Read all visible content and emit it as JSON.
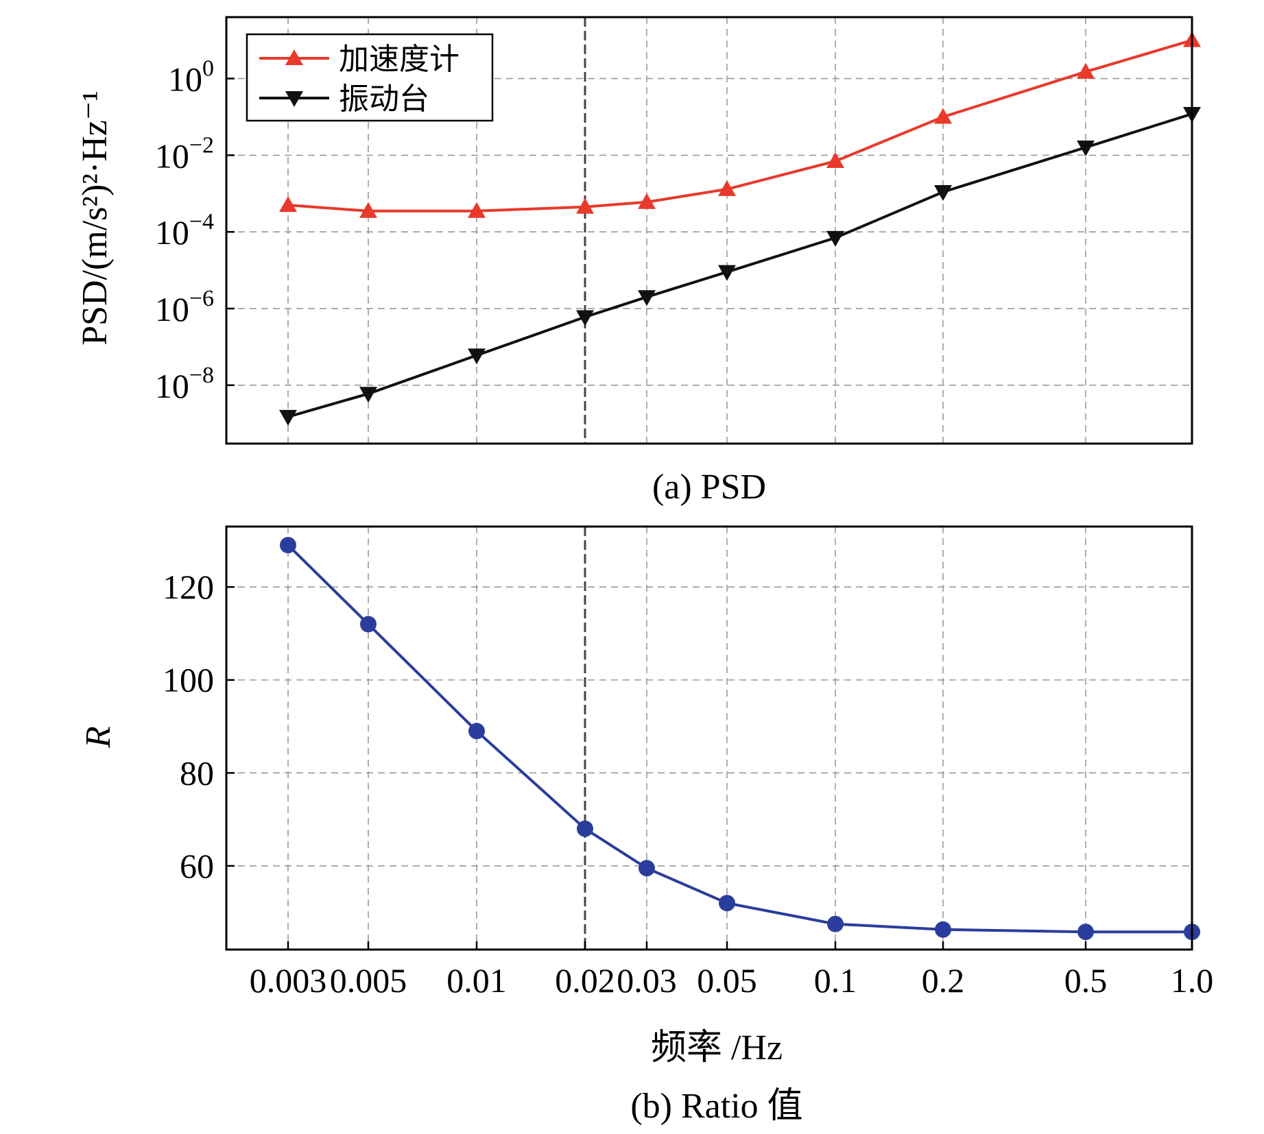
{
  "x_ticks": [
    "0.003",
    "0.005",
    "0.01",
    "0.02",
    "0.03",
    "0.05",
    "0.1",
    "0.2",
    "0.5",
    "1.0"
  ],
  "xlabel": "频率 /Hz",
  "colors": {
    "accelerometer": "#e8392b",
    "shaker": "#111111",
    "ratio": "#2a3d9c",
    "grid": "#9a9a9a",
    "marker_line": "#444444"
  },
  "chart_data": [
    {
      "type": "line",
      "title": "",
      "caption": "(a) PSD",
      "ylabel": "PSD/(m/s²)²·Hz⁻¹",
      "yscale": "log",
      "ylim": [
        3e-10,
        40
      ],
      "y_ticks": [
        {
          "exp": 0,
          "label_base": "10",
          "label_exp": "0"
        },
        {
          "exp": -2,
          "label_base": "10",
          "label_exp": "−2"
        },
        {
          "exp": -4,
          "label_base": "10",
          "label_exp": "−4"
        },
        {
          "exp": -6,
          "label_base": "10",
          "label_exp": "−6"
        },
        {
          "exp": -8,
          "label_base": "10",
          "label_exp": "−8"
        }
      ],
      "categories": [
        "0.003",
        "0.005",
        "0.01",
        "0.02",
        "0.03",
        "0.05",
        "0.1",
        "0.2",
        "0.5",
        "1.0"
      ],
      "marked_category": "0.02",
      "legend_position": "top-left",
      "series": [
        {
          "name": "加速度计",
          "marker": "triangle-up",
          "values": [
            0.0005,
            0.00035,
            0.00035,
            0.00045,
            0.0006,
            0.0013,
            0.007,
            0.1,
            1.5,
            10
          ]
        },
        {
          "name": "振动台",
          "marker": "triangle-down",
          "values": [
            1.5e-09,
            6e-09,
            6e-08,
            6e-07,
            2e-06,
            9e-06,
            7e-05,
            0.0011,
            0.016,
            0.12
          ]
        }
      ]
    },
    {
      "type": "line",
      "title": "",
      "caption": "(b) Ratio 值",
      "ylabel": "R",
      "yscale": "linear",
      "ylim": [
        42,
        133
      ],
      "y_ticks": [
        120,
        100,
        80,
        60
      ],
      "categories": [
        "0.003",
        "0.005",
        "0.01",
        "0.02",
        "0.03",
        "0.05",
        "0.1",
        "0.2",
        "0.5",
        "1.0"
      ],
      "marked_category": "0.02",
      "series": [
        {
          "name": "R",
          "marker": "circle",
          "values": [
            129,
            112,
            89,
            68,
            59.5,
            52,
            47.5,
            46.3,
            45.8,
            45.8
          ]
        }
      ]
    }
  ]
}
